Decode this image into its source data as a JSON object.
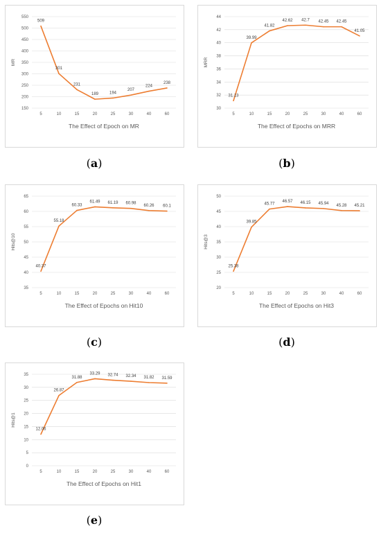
{
  "captions": [
    "a",
    "b",
    "c",
    "d",
    "e"
  ],
  "series_color": "#ED7D31",
  "chart_data": [
    {
      "type": "line",
      "title": "The Effect of Epoch on MR",
      "xlabel": "The Effect of Epoch on MR",
      "ylabel": "MR",
      "categories": [
        "5",
        "10",
        "15",
        "20",
        "25",
        "30",
        "40",
        "60"
      ],
      "values": [
        509,
        301,
        231,
        189,
        194,
        207,
        224,
        238
      ],
      "data_labels": [
        "509",
        "301",
        "231",
        "189",
        "194",
        "207",
        "224",
        "238"
      ],
      "ylim": [
        150,
        550
      ],
      "yticks": [
        150,
        200,
        250,
        300,
        350,
        400,
        450,
        500,
        550
      ],
      "grid": true
    },
    {
      "type": "line",
      "title": "The Effect of Epochs on MRR",
      "xlabel": "The Effect of Epochs on MRR",
      "ylabel": "MRR",
      "categories": [
        "5",
        "10",
        "15",
        "20",
        "25",
        "30",
        "40",
        "60"
      ],
      "values": [
        31.13,
        39.99,
        41.82,
        42.62,
        42.7,
        42.45,
        42.45,
        41.05
      ],
      "data_labels": [
        "31.13",
        "39.99",
        "41.82",
        "42.62",
        "42.7",
        "42.45",
        "42.45",
        "41.05"
      ],
      "ylim": [
        30,
        44
      ],
      "yticks": [
        30,
        32,
        34,
        36,
        38,
        40,
        42,
        44
      ],
      "grid": true
    },
    {
      "type": "line",
      "title": "The Effect of Epochs on Hit10",
      "xlabel": "The Effect of Epochs on Hit10",
      "ylabel": "Hits@10",
      "categories": [
        "5",
        "10",
        "15",
        "20",
        "25",
        "30",
        "40",
        "60"
      ],
      "values": [
        40.37,
        55.18,
        60.33,
        61.49,
        61.19,
        60.98,
        60.26,
        60.1
      ],
      "data_labels": [
        "40.37",
        "55.18",
        "60.33",
        "61.49",
        "61.19",
        "60.98",
        "60.26",
        "60.1"
      ],
      "ylim": [
        35,
        65
      ],
      "yticks": [
        35,
        40,
        45,
        50,
        55,
        60,
        65
      ],
      "grid": true
    },
    {
      "type": "line",
      "title": "The Effect of Epochs on Hit3",
      "xlabel": "The Effect of Epochs on Hit3",
      "ylabel": "Hits@3",
      "categories": [
        "5",
        "10",
        "15",
        "20",
        "25",
        "30",
        "40",
        "60"
      ],
      "values": [
        25.38,
        39.85,
        45.77,
        46.57,
        46.15,
        45.94,
        45.28,
        45.21
      ],
      "data_labels": [
        "25.38",
        "39.85",
        "45.77",
        "46.57",
        "46.15",
        "45.94",
        "45.28",
        "45.21"
      ],
      "ylim": [
        20,
        50
      ],
      "yticks": [
        20,
        25,
        30,
        35,
        40,
        45,
        50
      ],
      "grid": true
    },
    {
      "type": "line",
      "title": "The Effect of Epochs on Hit1",
      "xlabel": "The Effect of Epochs on Hit1",
      "ylabel": "Hits@1",
      "categories": [
        "5",
        "10",
        "15",
        "20",
        "25",
        "30",
        "40",
        "60"
      ],
      "values": [
        12.06,
        26.87,
        31.88,
        33.29,
        32.74,
        32.34,
        31.82,
        31.59
      ],
      "data_labels": [
        "12.06",
        "26.87",
        "31.88",
        "33.29",
        "32.74",
        "32.34",
        "31.82",
        "31.59"
      ],
      "ylim": [
        0,
        35
      ],
      "yticks": [
        0,
        5,
        10,
        15,
        20,
        25,
        30,
        35
      ],
      "grid": true
    }
  ]
}
